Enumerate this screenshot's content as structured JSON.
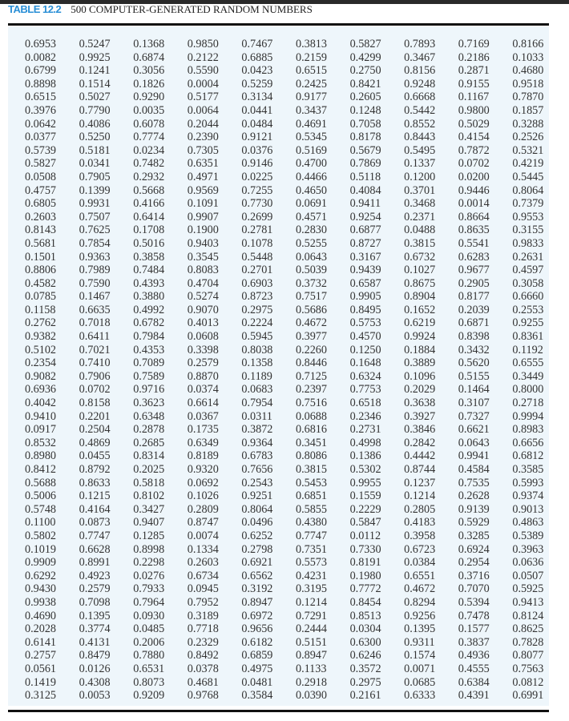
{
  "table": {
    "label": "TABLE 12.2",
    "caption": "500 COMPUTER-GENERATED RANDOM NUMBERS",
    "accent_color": "#2a8fd6",
    "panel_color": "#eef6fb",
    "rows": [
      [
        "0.6953",
        "0.5247",
        "0.1368",
        "0.9850",
        "0.7467",
        "0.3813",
        "0.5827",
        "0.7893",
        "0.7169",
        "0.8166"
      ],
      [
        "0.0082",
        "0.9925",
        "0.6874",
        "0.2122",
        "0.6885",
        "0.2159",
        "0.4299",
        "0.3467",
        "0.2186",
        "0.1033"
      ],
      [
        "0.6799",
        "0.1241",
        "0.3056",
        "0.5590",
        "0.0423",
        "0.6515",
        "0.2750",
        "0.8156",
        "0.2871",
        "0.4680"
      ],
      [
        "0.8898",
        "0.1514",
        "0.1826",
        "0.0004",
        "0.5259",
        "0.2425",
        "0.8421",
        "0.9248",
        "0.9155",
        "0.9518"
      ],
      [
        "0.6515",
        "0.5027",
        "0.9290",
        "0.5177",
        "0.3134",
        "0.9177",
        "0.2605",
        "0.6668",
        "0.1167",
        "0.7870"
      ],
      [
        "0.3976",
        "0.7790",
        "0.0035",
        "0.0064",
        "0.0441",
        "0.3437",
        "0.1248",
        "0.5442",
        "0.9800",
        "0.1857"
      ],
      [
        "0.0642",
        "0.4086",
        "0.6078",
        "0.2044",
        "0.0484",
        "0.4691",
        "0.7058",
        "0.8552",
        "0.5029",
        "0.3288"
      ],
      [
        "0.0377",
        "0.5250",
        "0.7774",
        "0.2390",
        "0.9121",
        "0.5345",
        "0.8178",
        "0.8443",
        "0.4154",
        "0.2526"
      ],
      [
        "0.5739",
        "0.5181",
        "0.0234",
        "0.7305",
        "0.0376",
        "0.5169",
        "0.5679",
        "0.5495",
        "0.7872",
        "0.5321"
      ],
      [
        "0.5827",
        "0.0341",
        "0.7482",
        "0.6351",
        "0.9146",
        "0.4700",
        "0.7869",
        "0.1337",
        "0.0702",
        "0.4219"
      ],
      [
        "0.0508",
        "0.7905",
        "0.2932",
        "0.4971",
        "0.0225",
        "0.4466",
        "0.5118",
        "0.1200",
        "0.0200",
        "0.5445"
      ],
      [
        "0.4757",
        "0.1399",
        "0.5668",
        "0.9569",
        "0.7255",
        "0.4650",
        "0.4084",
        "0.3701",
        "0.9446",
        "0.8064"
      ],
      [
        "0.6805",
        "0.9931",
        "0.4166",
        "0.1091",
        "0.7730",
        "0.0691",
        "0.9411",
        "0.3468",
        "0.0014",
        "0.7379"
      ],
      [
        "0.2603",
        "0.7507",
        "0.6414",
        "0.9907",
        "0.2699",
        "0.4571",
        "0.9254",
        "0.2371",
        "0.8664",
        "0.9553"
      ],
      [
        "0.8143",
        "0.7625",
        "0.1708",
        "0.1900",
        "0.2781",
        "0.2830",
        "0.6877",
        "0.0488",
        "0.8635",
        "0.3155"
      ],
      [
        "0.5681",
        "0.7854",
        "0.5016",
        "0.9403",
        "0.1078",
        "0.5255",
        "0.8727",
        "0.3815",
        "0.5541",
        "0.9833"
      ],
      [
        "0.1501",
        "0.9363",
        "0.3858",
        "0.3545",
        "0.5448",
        "0.0643",
        "0.3167",
        "0.6732",
        "0.6283",
        "0.2631"
      ],
      [
        "0.8806",
        "0.7989",
        "0.7484",
        "0.8083",
        "0.2701",
        "0.5039",
        "0.9439",
        "0.1027",
        "0.9677",
        "0.4597"
      ],
      [
        "0.4582",
        "0.7590",
        "0.4393",
        "0.4704",
        "0.6903",
        "0.3732",
        "0.6587",
        "0.8675",
        "0.2905",
        "0.3058"
      ],
      [
        "0.0785",
        "0.1467",
        "0.3880",
        "0.5274",
        "0.8723",
        "0.7517",
        "0.9905",
        "0.8904",
        "0.8177",
        "0.6660"
      ],
      [
        "0.1158",
        "0.6635",
        "0.4992",
        "0.9070",
        "0.2975",
        "0.5686",
        "0.8495",
        "0.1652",
        "0.2039",
        "0.2553"
      ],
      [
        "0.2762",
        "0.7018",
        "0.6782",
        "0.4013",
        "0.2224",
        "0.4672",
        "0.5753",
        "0.6219",
        "0.6871",
        "0.9255"
      ],
      [
        "0.9382",
        "0.6411",
        "0.7984",
        "0.0608",
        "0.5945",
        "0.3977",
        "0.4570",
        "0.9924",
        "0.8398",
        "0.8361"
      ],
      [
        "0.5102",
        "0.7021",
        "0.4353",
        "0.3398",
        "0.8038",
        "0.2260",
        "0.1250",
        "0.1884",
        "0.3432",
        "0.1192"
      ],
      [
        "0.2354",
        "0.7410",
        "0.7089",
        "0.2579",
        "0.1358",
        "0.8446",
        "0.1648",
        "0.3889",
        "0.5620",
        "0.6555"
      ],
      [
        "0.9082",
        "0.7906",
        "0.7589",
        "0.8870",
        "0.1189",
        "0.7125",
        "0.6324",
        "0.1096",
        "0.5155",
        "0.3449"
      ],
      [
        "0.6936",
        "0.0702",
        "0.9716",
        "0.0374",
        "0.0683",
        "0.2397",
        "0.7753",
        "0.2029",
        "0.1464",
        "0.8000"
      ],
      [
        "0.4042",
        "0.8158",
        "0.3623",
        "0.6614",
        "0.7954",
        "0.7516",
        "0.6518",
        "0.3638",
        "0.3107",
        "0.2718"
      ],
      [
        "0.9410",
        "0.2201",
        "0.6348",
        "0.0367",
        "0.0311",
        "0.0688",
        "0.2346",
        "0.3927",
        "0.7327",
        "0.9994"
      ],
      [
        "0.0917",
        "0.2504",
        "0.2878",
        "0.1735",
        "0.3872",
        "0.6816",
        "0.2731",
        "0.3846",
        "0.6621",
        "0.8983"
      ],
      [
        "0.8532",
        "0.4869",
        "0.2685",
        "0.6349",
        "0.9364",
        "0.3451",
        "0.4998",
        "0.2842",
        "0.0643",
        "0.6656"
      ],
      [
        "0.8980",
        "0.0455",
        "0.8314",
        "0.8189",
        "0.6783",
        "0.8086",
        "0.1386",
        "0.4442",
        "0.9941",
        "0.6812"
      ],
      [
        "0.8412",
        "0.8792",
        "0.2025",
        "0.9320",
        "0.7656",
        "0.3815",
        "0.5302",
        "0.8744",
        "0.4584",
        "0.3585"
      ],
      [
        "0.5688",
        "0.8633",
        "0.5818",
        "0.0692",
        "0.2543",
        "0.5453",
        "0.9955",
        "0.1237",
        "0.7535",
        "0.5993"
      ],
      [
        "0.5006",
        "0.1215",
        "0.8102",
        "0.1026",
        "0.9251",
        "0.6851",
        "0.1559",
        "0.1214",
        "0.2628",
        "0.9374"
      ],
      [
        "0.5748",
        "0.4164",
        "0.3427",
        "0.2809",
        "0.8064",
        "0.5855",
        "0.2229",
        "0.2805",
        "0.9139",
        "0.9013"
      ],
      [
        "0.1100",
        "0.0873",
        "0.9407",
        "0.8747",
        "0.0496",
        "0.4380",
        "0.5847",
        "0.4183",
        "0.5929",
        "0.4863"
      ],
      [
        "0.5802",
        "0.7747",
        "0.1285",
        "0.0074",
        "0.6252",
        "0.7747",
        "0.0112",
        "0.3958",
        "0.3285",
        "0.5389"
      ],
      [
        "0.1019",
        "0.6628",
        "0.8998",
        "0.1334",
        "0.2798",
        "0.7351",
        "0.7330",
        "0.6723",
        "0.6924",
        "0.3963"
      ],
      [
        "0.9909",
        "0.8991",
        "0.2298",
        "0.2603",
        "0.6921",
        "0.5573",
        "0.8191",
        "0.0384",
        "0.2954",
        "0.0636"
      ],
      [
        "0.6292",
        "0.4923",
        "0.0276",
        "0.6734",
        "0.6562",
        "0.4231",
        "0.1980",
        "0.6551",
        "0.3716",
        "0.0507"
      ],
      [
        "0.9430",
        "0.2579",
        "0.7933",
        "0.0945",
        "0.3192",
        "0.3195",
        "0.7772",
        "0.4672",
        "0.7070",
        "0.5925"
      ],
      [
        "0.9938",
        "0.7098",
        "0.7964",
        "0.7952",
        "0.8947",
        "0.1214",
        "0.8454",
        "0.8294",
        "0.5394",
        "0.9413"
      ],
      [
        "0.4690",
        "0.1395",
        "0.0930",
        "0.3189",
        "0.6972",
        "0.7291",
        "0.8513",
        "0.9256",
        "0.7478",
        "0.8124"
      ],
      [
        "0.2028",
        "0.3774",
        "0.0485",
        "0.7718",
        "0.9656",
        "0.2444",
        "0.0304",
        "0.1395",
        "0.1577",
        "0.8625"
      ],
      [
        "0.6141",
        "0.4131",
        "0.2006",
        "0.2329",
        "0.6182",
        "0.5151",
        "0.6300",
        "0.9311",
        "0.3837",
        "0.7828"
      ],
      [
        "0.2757",
        "0.8479",
        "0.7880",
        "0.8492",
        "0.6859",
        "0.8947",
        "0.6246",
        "0.1574",
        "0.4936",
        "0.8077"
      ],
      [
        "0.0561",
        "0.0126",
        "0.6531",
        "0.0378",
        "0.4975",
        "0.1133",
        "0.3572",
        "0.0071",
        "0.4555",
        "0.7563"
      ],
      [
        "0.1419",
        "0.4308",
        "0.8073",
        "0.4681",
        "0.0481",
        "0.2918",
        "0.2975",
        "0.0685",
        "0.6384",
        "0.0812"
      ],
      [
        "0.3125",
        "0.0053",
        "0.9209",
        "0.9768",
        "0.3584",
        "0.0390",
        "0.2161",
        "0.6333",
        "0.4391",
        "0.6991"
      ]
    ]
  }
}
